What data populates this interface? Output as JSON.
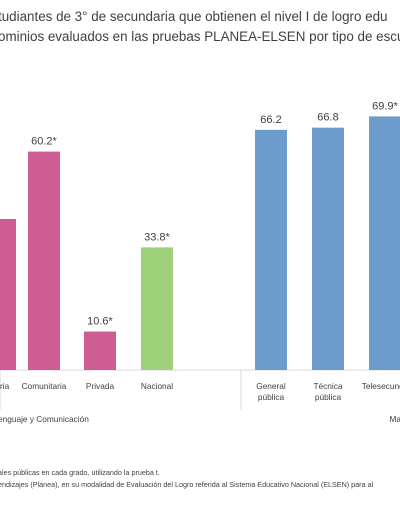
{
  "title_lines": [
    "tudiantes de 3° de secundaria que obtienen el nivel I de logro edu",
    "ominios evaluados en las pruebas PLANEA-ELSEN por tipo de escu"
  ],
  "chart_data": {
    "type": "bar",
    "ylim": [
      0,
      80
    ],
    "grid": false,
    "groups": [
      {
        "label": "enguaje y Comunicación",
        "color": "#cf5d93",
        "categories": [
          "daria",
          "Comunitaria",
          "Privada",
          "Nacional"
        ],
        "values": [
          null,
          60.2,
          10.6,
          33.8
        ],
        "value_labels": [
          "",
          "60.2*",
          "10.6*",
          "33.8*"
        ],
        "colors": [
          "#cf5d93",
          "#cf5d93",
          "#cf5d93",
          "#9fd17a"
        ]
      },
      {
        "label": "Ma",
        "color": "#6b9ccc",
        "categories": [
          "General pública",
          "Técnica pública",
          "Telesecunda"
        ],
        "values": [
          66.2,
          66.8,
          69.9
        ],
        "value_labels": [
          "66.2",
          "66.8",
          "69.9*"
        ],
        "colors": [
          "#6b9ccc",
          "#6b9ccc",
          "#6b9ccc"
        ]
      }
    ]
  },
  "notes": [
    "ales públicas en cada grado, utilizando la prueba t.",
    "endizajes (Planea), en su modalidad de Evaluación del Logro referida al Sistema Educativo Nacional (ELSEN) para al"
  ]
}
